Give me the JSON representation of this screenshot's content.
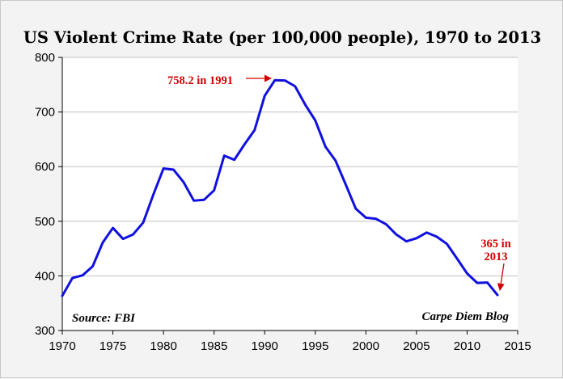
{
  "chart_data": {
    "type": "line",
    "title": "US Violent Crime Rate (per 100,000 people), 1970 to 2013",
    "xlabel": "",
    "ylabel": "",
    "xlim": [
      1970,
      2015
    ],
    "ylim": [
      300,
      800
    ],
    "x_ticks": [
      "1970",
      "1975",
      "1980",
      "1985",
      "1990",
      "1995",
      "2000",
      "2005",
      "2010",
      "2015"
    ],
    "y_ticks": [
      "300",
      "400",
      "500",
      "600",
      "700",
      "800"
    ],
    "grid": "horizontal",
    "series": [
      {
        "name": "Violent crime rate",
        "color": "#1010e0",
        "x": [
          1970,
          1971,
          1972,
          1973,
          1974,
          1975,
          1976,
          1977,
          1978,
          1979,
          1980,
          1981,
          1982,
          1983,
          1984,
          1985,
          1986,
          1987,
          1988,
          1989,
          1990,
          1991,
          1992,
          1993,
          1994,
          1995,
          1996,
          1997,
          1998,
          1999,
          2000,
          2001,
          2002,
          2003,
          2004,
          2005,
          2006,
          2007,
          2008,
          2009,
          2010,
          2011,
          2012,
          2013
        ],
        "values": [
          363.5,
          396,
          401,
          417.4,
          461.1,
          487.8,
          467.8,
          475.9,
          497.8,
          548.9,
          596.6,
          594.3,
          571.1,
          537.7,
          539.2,
          556.6,
          620.1,
          612.5,
          640.6,
          666.9,
          729.6,
          758.2,
          757.7,
          747.1,
          713.6,
          684.5,
          636.6,
          611,
          567.6,
          523,
          506.5,
          504.5,
          494.4,
          475.8,
          463.2,
          469,
          479.3,
          471.8,
          458.6,
          431.9,
          404.5,
          387.1,
          387.8,
          365
        ]
      }
    ],
    "annotations": [
      {
        "text": "758.2 in 1991",
        "x": 1991,
        "y": 758.2,
        "color": "#d20000"
      },
      {
        "text_line1": "365 in",
        "text_line2": "2013",
        "x": 2013,
        "y": 365,
        "color": "#d20000"
      }
    ],
    "notes": {
      "source": "Source: FBI",
      "credit": "Carpe Diem Blog"
    }
  }
}
